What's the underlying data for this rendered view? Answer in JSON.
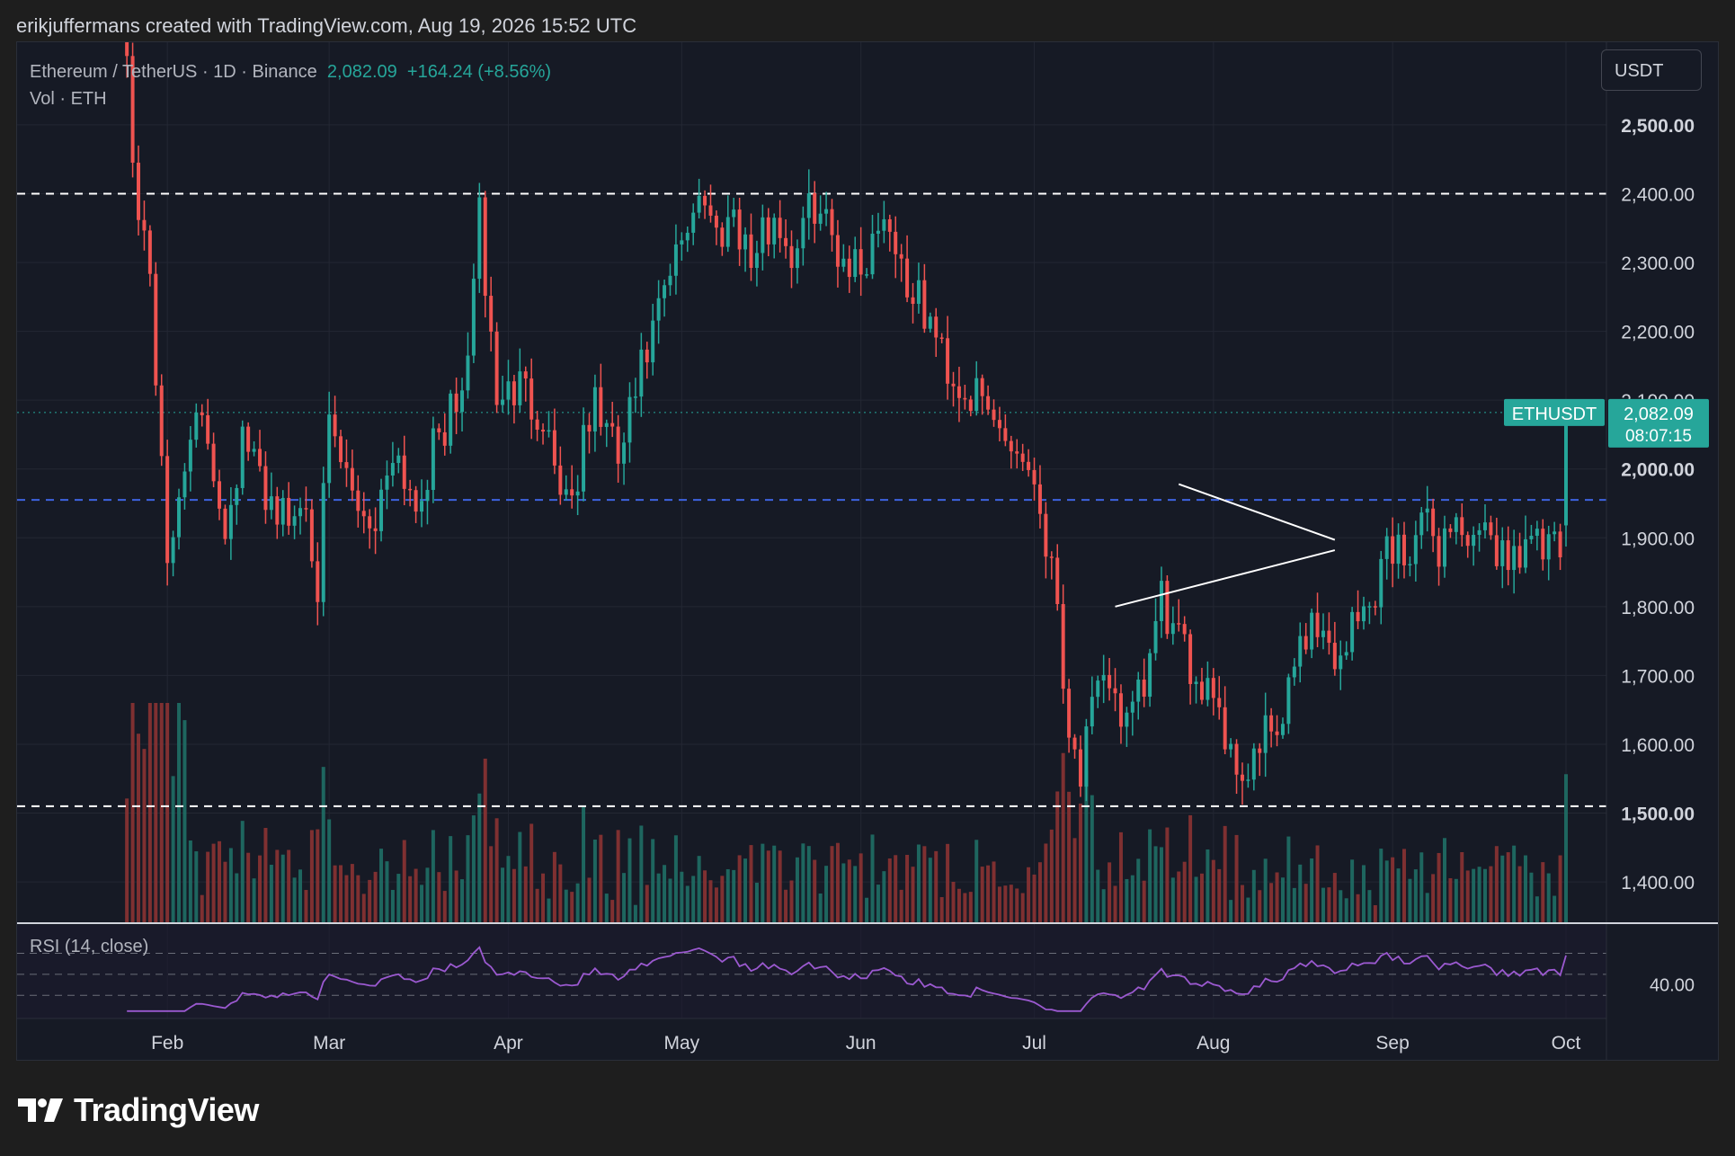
{
  "attribution": "erikjuffermans created with TradingView.com, Aug 19, 2026 15:52 UTC",
  "legend": {
    "symbol_text": "Ethereum / TetherUS · 1D · Binance",
    "last_price": "2,082.09",
    "change": "+164.24 (+8.56%)",
    "volume_label": "Vol · ETH"
  },
  "currency_button": "USDT",
  "symbol_badge": "ETHUSDT",
  "last_price_badge": "2,082.09",
  "countdown": "08:07:15",
  "rsi_label": "RSI (14, close)",
  "rsi_tick": "40.00",
  "branding": "TradingView",
  "colors": {
    "up": "#26a69a",
    "down": "#ef5350",
    "rsi": "#9b59d0",
    "support_line": "#3d63e0",
    "background": "#161a25"
  },
  "chart_data": {
    "type": "candlestick",
    "title": "Ethereum / TetherUS · 1D · Binance",
    "x_ticks": [
      "Feb",
      "Mar",
      "Apr",
      "May",
      "Jun",
      "Jul",
      "Aug",
      "Sep",
      "Oct"
    ],
    "y_ticks": [
      "1,400.00",
      "1,500.00",
      "1,600.00",
      "1,700.00",
      "1,800.00",
      "1,900.00",
      "2,000.00",
      "2,100.00",
      "2,200.00",
      "2,300.00",
      "2,400.00",
      "2,500.00"
    ],
    "y_range": [
      1340,
      2620
    ],
    "x_range": [
      "2026-01-06",
      "2026-10-08"
    ],
    "horizontal_levels": [
      {
        "price": 2400,
        "style": "dashed",
        "color": "#ffffff"
      },
      {
        "price": 1955,
        "style": "dashed",
        "color": "#3d63e0"
      },
      {
        "price": 1510,
        "style": "dashed",
        "color": "#ffffff"
      }
    ],
    "last_price": 2082.09,
    "triangle": {
      "upper": [
        [
          "2026-07-26",
          1978
        ],
        [
          "2026-08-22",
          1897
        ]
      ],
      "lower": [
        [
          "2026-07-15",
          1800
        ],
        [
          "2026-08-22",
          1882
        ]
      ]
    },
    "close_path": [
      [
        "2026-01-25",
        2600
      ],
      [
        "2026-01-27",
        2360
      ],
      [
        "2026-01-29",
        2300
      ],
      [
        "2026-01-30",
        2130
      ],
      [
        "2026-01-31",
        2040
      ],
      [
        "2026-02-01",
        1830
      ],
      [
        "2026-02-02",
        1900
      ],
      [
        "2026-02-05",
        2070
      ],
      [
        "2026-02-08",
        2040
      ],
      [
        "2026-02-11",
        1920
      ],
      [
        "2026-02-14",
        2040
      ],
      [
        "2026-02-18",
        1970
      ],
      [
        "2026-02-22",
        1920
      ],
      [
        "2026-02-25",
        1960
      ],
      [
        "2026-02-27",
        1840
      ],
      [
        "2026-03-01",
        2050
      ],
      [
        "2026-03-05",
        1960
      ],
      [
        "2026-03-09",
        1920
      ],
      [
        "2026-03-12",
        2040
      ],
      [
        "2026-03-16",
        1950
      ],
      [
        "2026-03-20",
        2050
      ],
      [
        "2026-03-24",
        2100
      ],
      [
        "2026-03-27",
        2360
      ],
      [
        "2026-03-30",
        2100
      ],
      [
        "2026-04-03",
        2120
      ],
      [
        "2026-04-07",
        2080
      ],
      [
        "2026-04-10",
        1980
      ],
      [
        "2026-04-12",
        1960
      ],
      [
        "2026-04-16",
        2100
      ],
      [
        "2026-04-20",
        2010
      ],
      [
        "2026-04-24",
        2140
      ],
      [
        "2026-04-28",
        2250
      ],
      [
        "2026-05-01",
        2330
      ],
      [
        "2026-05-04",
        2410
      ],
      [
        "2026-05-07",
        2340
      ],
      [
        "2026-05-10",
        2380
      ],
      [
        "2026-05-13",
        2300
      ],
      [
        "2026-05-17",
        2370
      ],
      [
        "2026-05-20",
        2310
      ],
      [
        "2026-05-24",
        2390
      ],
      [
        "2026-05-28",
        2320
      ],
      [
        "2026-06-01",
        2290
      ],
      [
        "2026-06-05",
        2380
      ],
      [
        "2026-06-09",
        2270
      ],
      [
        "2026-06-13",
        2210
      ],
      [
        "2026-06-17",
        2130
      ],
      [
        "2026-06-21",
        2100
      ],
      [
        "2026-06-25",
        2060
      ],
      [
        "2026-06-28",
        2030
      ],
      [
        "2026-07-01",
        1990
      ],
      [
        "2026-07-03",
        1900
      ],
      [
        "2026-07-05",
        1810
      ],
      [
        "2026-07-07",
        1620
      ],
      [
        "2026-07-09",
        1560
      ],
      [
        "2026-07-11",
        1640
      ],
      [
        "2026-07-14",
        1700
      ],
      [
        "2026-07-17",
        1620
      ],
      [
        "2026-07-20",
        1680
      ],
      [
        "2026-07-23",
        1810
      ],
      [
        "2026-07-26",
        1740
      ],
      [
        "2026-07-29",
        1700
      ],
      [
        "2026-08-01",
        1690
      ],
      [
        "2026-08-04",
        1580
      ],
      [
        "2026-08-07",
        1560
      ],
      [
        "2026-08-10",
        1610
      ],
      [
        "2026-08-13",
        1620
      ],
      [
        "2026-08-16",
        1760
      ],
      [
        "2026-08-19",
        1780
      ],
      [
        "2026-08-22",
        1720
      ],
      [
        "2026-08-25",
        1770
      ],
      [
        "2026-08-28",
        1800
      ],
      [
        "2026-08-31",
        1890
      ],
      [
        "2026-09-03",
        1880
      ],
      [
        "2026-09-06",
        1920
      ],
      [
        "2026-09-09",
        1890
      ],
      [
        "2026-09-12",
        1930
      ],
      [
        "2026-09-15",
        1880
      ],
      [
        "2026-09-18",
        1900
      ],
      [
        "2026-09-21",
        1870
      ],
      [
        "2026-09-24",
        1900
      ],
      [
        "2026-09-27",
        1880
      ],
      [
        "2026-09-30",
        1875
      ],
      [
        "2026-10-01",
        2082
      ]
    ],
    "rsi": {
      "period": 14,
      "source": "close",
      "levels": [
        30,
        50,
        70
      ],
      "tick": 40
    }
  }
}
